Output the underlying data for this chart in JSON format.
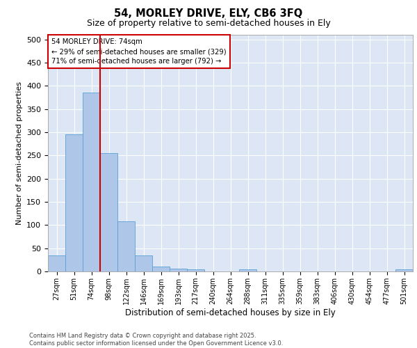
{
  "title1": "54, MORLEY DRIVE, ELY, CB6 3FQ",
  "title2": "Size of property relative to semi-detached houses in Ely",
  "xlabel": "Distribution of semi-detached houses by size in Ely",
  "ylabel": "Number of semi-detached properties",
  "categories": [
    "27sqm",
    "51sqm",
    "74sqm",
    "98sqm",
    "122sqm",
    "146sqm",
    "169sqm",
    "193sqm",
    "217sqm",
    "240sqm",
    "264sqm",
    "288sqm",
    "311sqm",
    "335sqm",
    "359sqm",
    "383sqm",
    "406sqm",
    "430sqm",
    "454sqm",
    "477sqm",
    "501sqm"
  ],
  "values": [
    35,
    295,
    385,
    255,
    108,
    35,
    10,
    6,
    4,
    0,
    0,
    4,
    0,
    0,
    0,
    0,
    0,
    0,
    0,
    0,
    4
  ],
  "bar_color": "#aec6e8",
  "bar_edgecolor": "#5a9fd4",
  "vline_color": "#cc0000",
  "vline_x_index": 2,
  "annotation_title": "54 MORLEY DRIVE: 74sqm",
  "annotation_line1": "← 29% of semi-detached houses are smaller (329)",
  "annotation_line2": "71% of semi-detached houses are larger (792) →",
  "annotation_box_edgecolor": "#cc0000",
  "ylim": [
    0,
    510
  ],
  "yticks": [
    0,
    50,
    100,
    150,
    200,
    250,
    300,
    350,
    400,
    450,
    500
  ],
  "background_color": "#dce6f5",
  "footer1": "Contains HM Land Registry data © Crown copyright and database right 2025.",
  "footer2": "Contains public sector information licensed under the Open Government Licence v3.0."
}
